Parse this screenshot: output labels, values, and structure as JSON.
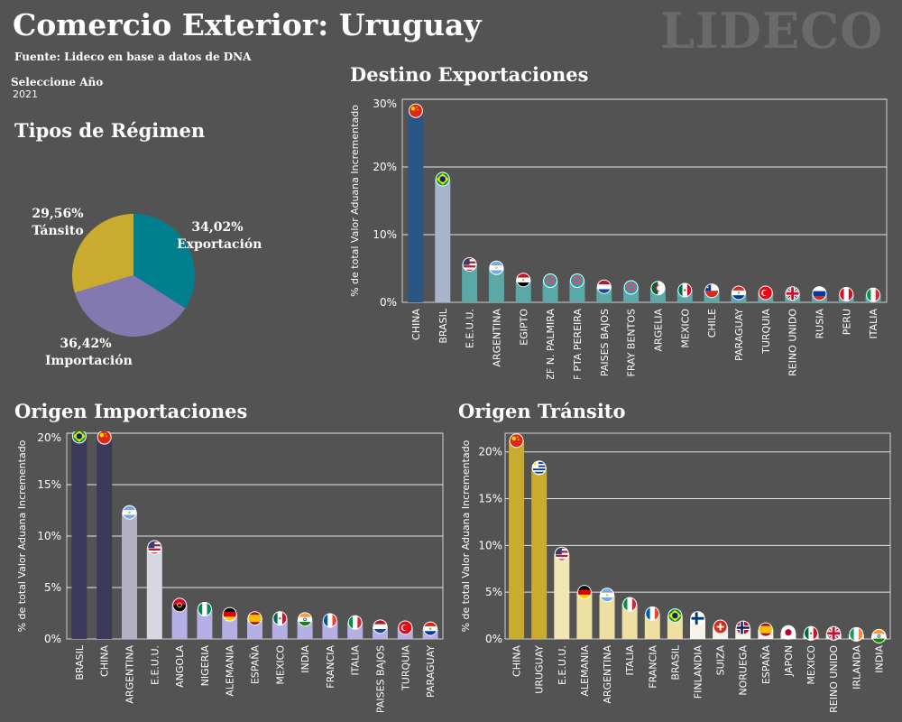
{
  "header": {
    "title": "Comercio Exterior: Uruguay",
    "source": "Fuente: Lideco en base a datos de DNA",
    "watermark": "LIDECO",
    "year_label": "Seleccione Año",
    "year_value": "2021"
  },
  "colors": {
    "background": "#535353",
    "exportacion": "#00808f",
    "importacion": "#8279b0",
    "transito": "#c9ac2f",
    "exp_top": "#2a5686",
    "exp_second": "#a8b4cb",
    "exp_rest": "#5aa8a8",
    "imp_top": "#3b3a5a",
    "imp_third": "#b3b0c3",
    "imp_fourth": "#d7d7e2",
    "imp_rest": "#b4b0e6",
    "tra_top": "#c9ac2f",
    "tra_third": "#f1e6b3",
    "tra_mid": "#eee0a3",
    "tra_rest": "#f5f3ea"
  },
  "chart_data": [
    {
      "type": "pie",
      "title": "Tipos de Régimen",
      "slices": [
        {
          "label": "Exportación",
          "value": 34.02,
          "display": "34,02%",
          "color": "#00808f"
        },
        {
          "label": "Importación",
          "value": 36.42,
          "display": "36,42%",
          "color": "#8279b0"
        },
        {
          "label": "Tánsito",
          "value": 29.56,
          "display": "29,56%",
          "color": "#c9ac2f"
        }
      ]
    },
    {
      "type": "bar",
      "title": "Destino Exportaciones",
      "ylabel": "% de total Valor Aduana Incrementado",
      "ylim": [
        0,
        30
      ],
      "yticks": [
        "0%",
        "10%",
        "20%",
        "30%"
      ],
      "categories": [
        "CHINA",
        "BRASIL",
        "E.E.U.U.",
        "ARGENTINA",
        "EGIPTO",
        "ZF N. PALMIRA",
        "ZF PTA PEREIRA",
        "PAISES BAJOS",
        "ZF FRAY BENTOS",
        "ARGELIA",
        "MEXICO",
        "CHILE",
        "PARAGUAY",
        "TURQUIA",
        "REINO UNIDO",
        "RUSIA",
        "PERU",
        "ITALIA"
      ],
      "values": [
        28.3,
        18.2,
        5.6,
        5.1,
        3.3,
        3.2,
        3.2,
        2.3,
        2.2,
        2.1,
        1.8,
        1.7,
        1.4,
        1.4,
        1.3,
        1.3,
        1.2,
        1.1
      ],
      "flags": [
        "china",
        "brasil",
        "usa",
        "argentina",
        "egipto",
        "zf",
        "zf",
        "paises-bajos",
        "zf",
        "argelia",
        "mexico",
        "chile",
        "paraguay",
        "turquia",
        "reino-unido",
        "rusia",
        "peru",
        "italia"
      ]
    },
    {
      "type": "bar",
      "title": "Origen Importaciones",
      "ylabel": "% de total Valor Aduana Incrementado",
      "ylim": [
        0,
        20
      ],
      "yticks": [
        "0%",
        "5%",
        "10%",
        "15%",
        "20%"
      ],
      "categories": [
        "BRASIL",
        "CHINA",
        "ARGENTINA",
        "E.E.U.U.",
        "ANGOLA",
        "NIGERIA",
        "ALEMANIA",
        "ESPAÑA",
        "MEXICO",
        "INDIA",
        "FRANCIA",
        "ITALIA",
        "PAISES BAJOS",
        "TURQUIA",
        "PARAGUAY"
      ],
      "values": [
        19.7,
        19.6,
        12.3,
        8.9,
        3.3,
        2.9,
        2.4,
        2.0,
        2.0,
        1.9,
        1.8,
        1.6,
        1.2,
        1.1,
        1.0
      ],
      "flags": [
        "brasil",
        "china",
        "argentina",
        "usa",
        "angola",
        "nigeria",
        "alemania",
        "espana",
        "mexico",
        "india",
        "francia",
        "italia",
        "paises-bajos",
        "turquia",
        "paraguay"
      ]
    },
    {
      "type": "bar",
      "title": "Origen Tránsito",
      "ylabel": "% de total Valor Aduana Incrementado",
      "ylim": [
        0,
        22
      ],
      "yticks": [
        "0%",
        "5%",
        "10%",
        "15%",
        "20%"
      ],
      "categories": [
        "CHINA",
        "URUGUAY",
        "E.E.U.U.",
        "ALEMANIA",
        "ARGENTINA",
        "ITALIA",
        "FRANCIA",
        "BRASIL",
        "FINLANDIA",
        "SUIZA",
        "NORUEGA",
        "ESPAÑA",
        "JAPON",
        "MEXICO",
        "REINO UNIDO",
        "IRLANDA",
        "INDIA"
      ],
      "values": [
        21.2,
        18.3,
        9.1,
        5.0,
        4.7,
        3.7,
        2.7,
        2.5,
        2.2,
        1.3,
        1.2,
        1.0,
        0.7,
        0.6,
        0.6,
        0.5,
        0.3
      ],
      "flags": [
        "china",
        "uruguay",
        "usa",
        "alemania",
        "argentina",
        "italia",
        "francia",
        "brasil",
        "finlandia",
        "suiza",
        "noruega",
        "espana",
        "japon",
        "mexico",
        "reino-unido",
        "irlanda",
        "india"
      ]
    }
  ]
}
